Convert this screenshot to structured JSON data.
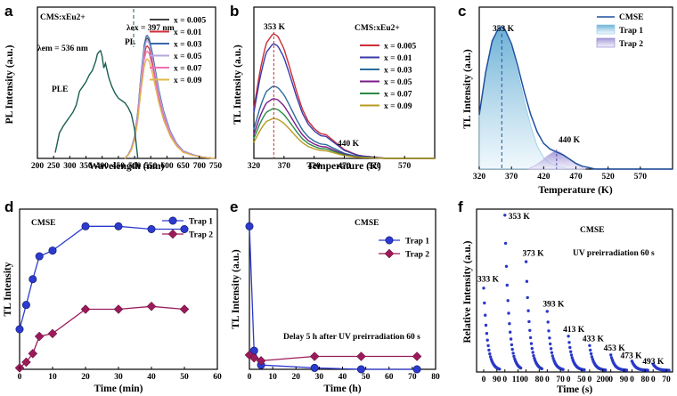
{
  "chart_data": [
    {
      "panel": "a",
      "type": "line",
      "xlabel": "Wavelength (nm)",
      "ylabel": "PL Intensity (a.u.)",
      "xlim": [
        200,
        750
      ],
      "xticks": [
        "200",
        "250",
        "300",
        "350",
        "400",
        "450",
        "500",
        "550",
        "600",
        "650",
        "700",
        "750"
      ],
      "sample_label": "CMS:xEu2+",
      "annotations": {
        "ple": "PLE",
        "pl": "PL",
        "em": "λem = 536 nm",
        "ex": "λex = 397 nm"
      },
      "ple_series": {
        "color": "#1a5e52",
        "x": [
          255,
          268,
          280,
          290,
          300,
          310,
          320,
          330,
          340,
          350,
          360,
          370,
          380,
          385,
          390,
          395,
          400,
          405,
          410,
          420,
          430,
          440,
          450,
          460,
          470,
          480,
          490,
          500,
          510
        ],
        "y": [
          0.05,
          0.22,
          0.28,
          0.32,
          0.36,
          0.4,
          0.46,
          0.58,
          0.62,
          0.66,
          0.72,
          0.76,
          0.84,
          0.9,
          0.92,
          0.93,
          0.88,
          0.78,
          0.82,
          0.7,
          0.62,
          0.56,
          0.52,
          0.5,
          0.48,
          0.44,
          0.38,
          0.25,
          0.0
        ]
      },
      "pl_shape": {
        "x": [
          470,
          480,
          490,
          500,
          510,
          520,
          530,
          537,
          545,
          555,
          565,
          575,
          590,
          610,
          630,
          650,
          680,
          710,
          750
        ],
        "y": [
          0.0,
          0.03,
          0.08,
          0.18,
          0.38,
          0.68,
          0.92,
          1.0,
          0.97,
          0.85,
          0.7,
          0.55,
          0.38,
          0.22,
          0.12,
          0.06,
          0.03,
          0.01,
          0.0
        ]
      },
      "series": [
        {
          "name": "x = 0.005",
          "color": "#444444",
          "peak": 0.92
        },
        {
          "name": "x = 0.01",
          "color": "#d0313c",
          "peak": 0.86
        },
        {
          "name": "x = 0.03",
          "color": "#3a68a8",
          "peak": 0.94
        },
        {
          "name": "x = 0.05",
          "color": "#b9a6dd",
          "peak": 0.9
        },
        {
          "name": "x = 0.07",
          "color": "#f06fb0",
          "peak": 0.82
        },
        {
          "name": "x = 0.09",
          "color": "#e0b84a",
          "peak": 0.76
        }
      ]
    },
    {
      "panel": "b",
      "type": "line",
      "xlabel": "Temperature (K)",
      "ylabel": "TL Intensity (a.u.)",
      "xlim": [
        320,
        620
      ],
      "xticks": [
        "320",
        "370",
        "420",
        "470",
        "520",
        "570"
      ],
      "sample_label": "CMS:xEu2+",
      "annotations": {
        "peak1": "353 K",
        "peak2": "440 K"
      },
      "tl_shape": {
        "x": [
          320,
          330,
          340,
          350,
          353,
          360,
          370,
          380,
          390,
          400,
          410,
          420,
          430,
          440,
          450,
          460,
          470,
          480,
          490,
          500,
          520,
          540,
          560,
          580,
          600,
          620
        ],
        "y": [
          0.4,
          0.7,
          0.92,
          0.99,
          1.0,
          0.98,
          0.88,
          0.72,
          0.55,
          0.4,
          0.3,
          0.24,
          0.2,
          0.19,
          0.15,
          0.11,
          0.07,
          0.05,
          0.03,
          0.02,
          0.01,
          0.0,
          0.0,
          0.0,
          0.0,
          0.0
        ]
      },
      "series": [
        {
          "name": "x = 0.005",
          "color": "#cc2d36",
          "peak": 1.0
        },
        {
          "name": "x = 0.01",
          "color": "#3a3aaa",
          "peak": 0.92
        },
        {
          "name": "x = 0.03",
          "color": "#2c6c9c",
          "peak": 0.58
        },
        {
          "name": "x = 0.05",
          "color": "#7a1c8a",
          "peak": 0.48
        },
        {
          "name": "x = 0.07",
          "color": "#2a8a45",
          "peak": 0.4
        },
        {
          "name": "x = 0.09",
          "color": "#b99b22",
          "peak": 0.32
        }
      ]
    },
    {
      "panel": "c",
      "type": "area",
      "xlabel": "Temperature (K)",
      "ylabel": "TL Intensity (a.u.)",
      "xlim": [
        320,
        620
      ],
      "xticks": [
        "320",
        "370",
        "420",
        "470",
        "520",
        "570"
      ],
      "annotations": {
        "peak1": "353 K",
        "peak2": "440 K"
      },
      "series": [
        {
          "name": "CMSE",
          "color": "#1f4fa0",
          "x": [
            320,
            330,
            340,
            350,
            355,
            360,
            370,
            380,
            390,
            400,
            410,
            420,
            430,
            440,
            450,
            460,
            470,
            480,
            490,
            500,
            520,
            550,
            600,
            620
          ],
          "y": [
            0.38,
            0.68,
            0.9,
            0.99,
            1.0,
            0.98,
            0.88,
            0.72,
            0.54,
            0.38,
            0.26,
            0.18,
            0.14,
            0.12,
            0.1,
            0.07,
            0.04,
            0.02,
            0.01,
            0.0,
            0.0,
            0.0,
            0.0,
            0.0
          ]
        },
        {
          "name": "Trap 1",
          "color": "#8ec9e6",
          "x": [
            320,
            330,
            340,
            350,
            355,
            360,
            370,
            380,
            390,
            400,
            410,
            420,
            430,
            440,
            450,
            460,
            470,
            480
          ],
          "y": [
            0.38,
            0.68,
            0.9,
            0.99,
            1.0,
            0.98,
            0.86,
            0.68,
            0.48,
            0.3,
            0.16,
            0.08,
            0.04,
            0.02,
            0.01,
            0.0,
            0.0,
            0.0
          ]
        },
        {
          "name": "Trap 2",
          "color": "#c9bfe6",
          "x": [
            395,
            405,
            415,
            425,
            435,
            440,
            445,
            455,
            465,
            475,
            485
          ],
          "y": [
            0.0,
            0.02,
            0.05,
            0.09,
            0.12,
            0.125,
            0.12,
            0.09,
            0.05,
            0.02,
            0.0
          ]
        }
      ]
    },
    {
      "panel": "d",
      "type": "line",
      "title": "CMSE",
      "xlabel": "Time (min)",
      "ylabel": "TL Intensity",
      "xlim": [
        0,
        60
      ],
      "ylim": [
        0,
        1.12
      ],
      "xticks": [
        "0",
        "10",
        "20",
        "30",
        "40",
        "50",
        "60"
      ],
      "series": [
        {
          "name": "Trap 1",
          "color": "#2c3ad0",
          "x": [
            0,
            2,
            4,
            6,
            10,
            20,
            30,
            40,
            50
          ],
          "y": [
            0.28,
            0.45,
            0.63,
            0.79,
            0.83,
            1.0,
            1.0,
            0.98,
            0.98
          ]
        },
        {
          "name": "Trap 2",
          "color": "#9b1a5a",
          "x": [
            0,
            2,
            4,
            6,
            10,
            20,
            30,
            40,
            50
          ],
          "y": [
            0.01,
            0.05,
            0.11,
            0.23,
            0.25,
            0.42,
            0.42,
            0.44,
            0.42
          ]
        }
      ]
    },
    {
      "panel": "e",
      "type": "line",
      "title": "CMSE",
      "annotation": "Delay 5 h after UV preirradiation 60 s",
      "xlabel": "Time (h)",
      "ylabel": "TL Intensity (a.u.)",
      "xlim": [
        0,
        80
      ],
      "ylim": [
        0,
        1.12
      ],
      "xticks": [
        "0",
        "10",
        "20",
        "30",
        "40",
        "50",
        "60",
        "70",
        "80"
      ],
      "series": [
        {
          "name": "Trap 1",
          "color": "#2c3ad0",
          "x": [
            0,
            2,
            5,
            28,
            48,
            72
          ],
          "y": [
            1.0,
            0.13,
            0.03,
            0.01,
            0.0,
            0.0
          ]
        },
        {
          "name": "Trap 2",
          "color": "#9b1a5a",
          "x": [
            0,
            2,
            5,
            28,
            48,
            72
          ],
          "y": [
            0.1,
            0.08,
            0.06,
            0.09,
            0.09,
            0.09
          ]
        }
      ]
    },
    {
      "panel": "f",
      "type": "scatter",
      "title": "CMSE",
      "subtitle": "UV preirradiation 60 s",
      "xlabel": "Time (s)",
      "ylabel": "Relative Intensity (a.u.)",
      "xticks": [
        "0",
        "90",
        "0",
        "110",
        "0",
        "80",
        "0",
        "70",
        "0",
        "50",
        "0",
        "200",
        "0",
        "90",
        "0",
        "80",
        "0",
        "70"
      ],
      "color": "#2a38c8",
      "decays": [
        {
          "label": "333 K",
          "peak": 0.53
        },
        {
          "label": "353 K",
          "peak": 1.0
        },
        {
          "label": "373 K",
          "peak": 0.7
        },
        {
          "label": "393 K",
          "peak": 0.38
        },
        {
          "label": "413 K",
          "peak": 0.22
        },
        {
          "label": "433 K",
          "peak": 0.16
        },
        {
          "label": "453 K",
          "peak": 0.1
        },
        {
          "label": "473 K",
          "peak": 0.06
        },
        {
          "label": "493 K",
          "peak": 0.04
        }
      ]
    }
  ]
}
